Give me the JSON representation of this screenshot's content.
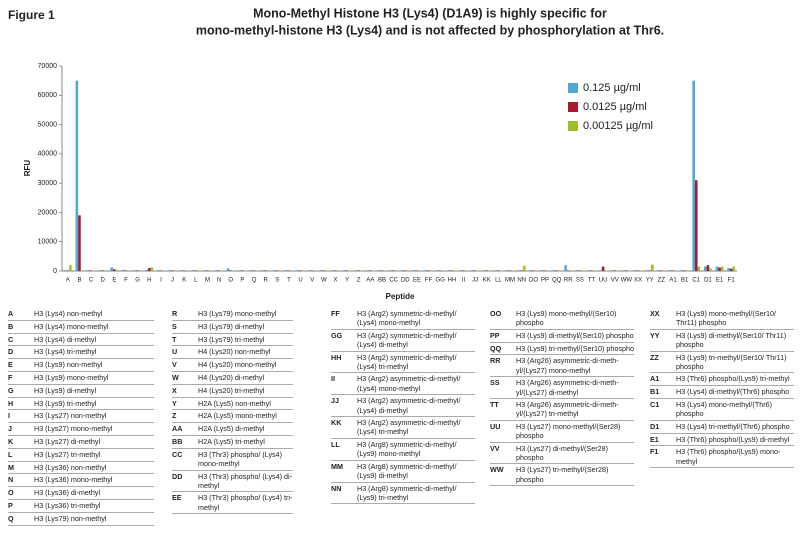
{
  "figure_label": "Figure 1",
  "chart_data": {
    "type": "bar",
    "title": [
      "Mono-Methyl Histone H3 (Lys4) (D1A9) is highly specific for",
      "mono-methyl-histone H3 (Lys4) and is not affected by phosphorylation at Thr6."
    ],
    "ylabel": "RFU",
    "xlabel": "Peptide",
    "categories": [
      "A",
      "B",
      "C",
      "D",
      "E",
      "F",
      "G",
      "H",
      "I",
      "J",
      "K",
      "L",
      "M",
      "N",
      "O",
      "P",
      "Q",
      "R",
      "S",
      "T",
      "U",
      "V",
      "W",
      "X",
      "Y",
      "Z",
      "AA",
      "BB",
      "CC",
      "DD",
      "EE",
      "FF",
      "GG",
      "HH",
      "II",
      "JJ",
      "KK",
      "LL",
      "MM",
      "NN",
      "OO",
      "PP",
      "QQ",
      "RR",
      "SS",
      "TT",
      "UU",
      "VV",
      "WW",
      "XX",
      "YY",
      "ZZ",
      "A1",
      "B1",
      "C1",
      "D1",
      "E1",
      "F1"
    ],
    "series": [
      {
        "name": "0.125 µg/ml",
        "color": "#4ea8d8",
        "values": [
          300,
          65000,
          300,
          300,
          1200,
          400,
          300,
          400,
          300,
          300,
          300,
          300,
          300,
          300,
          900,
          300,
          300,
          300,
          300,
          300,
          300,
          300,
          300,
          300,
          300,
          300,
          300,
          300,
          300,
          300,
          300,
          300,
          300,
          300,
          300,
          300,
          300,
          300,
          300,
          300,
          300,
          300,
          300,
          2000,
          300,
          300,
          300,
          300,
          300,
          300,
          300,
          300,
          300,
          300,
          65000,
          1500,
          1500,
          1000
        ]
      },
      {
        "name": "0.0125 µg/ml",
        "color": "#a6192e",
        "values": [
          200,
          19000,
          200,
          200,
          600,
          200,
          200,
          1000,
          200,
          200,
          200,
          200,
          200,
          200,
          200,
          200,
          200,
          200,
          200,
          200,
          200,
          200,
          200,
          200,
          200,
          200,
          200,
          200,
          200,
          200,
          200,
          200,
          200,
          200,
          200,
          200,
          200,
          200,
          200,
          200,
          200,
          200,
          200,
          200,
          200,
          200,
          1500,
          200,
          200,
          200,
          200,
          200,
          200,
          200,
          31000,
          2000,
          1200,
          800
        ]
      },
      {
        "name": "0.00125 µg/ml",
        "color": "#9cbf2b",
        "values": [
          2000,
          200,
          200,
          200,
          300,
          200,
          200,
          1200,
          200,
          200,
          200,
          200,
          200,
          200,
          200,
          200,
          200,
          200,
          200,
          200,
          200,
          200,
          200,
          200,
          200,
          200,
          200,
          200,
          200,
          200,
          200,
          200,
          200,
          200,
          200,
          200,
          200,
          200,
          200,
          1800,
          200,
          200,
          200,
          200,
          200,
          200,
          200,
          200,
          200,
          200,
          2200,
          200,
          200,
          200,
          1500,
          800,
          1500,
          1500
        ]
      }
    ],
    "ylim": [
      0,
      70000
    ],
    "yticks": [
      0,
      10000,
      20000,
      30000,
      40000,
      50000,
      60000,
      70000
    ],
    "legend": "top-right"
  },
  "key": [
    [
      {
        "code": "A",
        "description": "H3 (Lys4) non-methyl"
      },
      {
        "code": "B",
        "description": "H3 (Lys4) mono-methyl"
      },
      {
        "code": "C",
        "description": "H3 (Lys4) di-methyl"
      },
      {
        "code": "D",
        "description": "H3 (Lys4) tri-methyl"
      },
      {
        "code": "E",
        "description": "H3 (Lys9) non-methyl"
      },
      {
        "code": "F",
        "description": "H3 (Lys9) mono-methyl"
      },
      {
        "code": "G",
        "description": "H3 (Lys9) di-methyl"
      },
      {
        "code": "H",
        "description": "H3 (Lys9) tri-methyl"
      },
      {
        "code": "I",
        "description": "H3 (Lys27) non-methyl"
      },
      {
        "code": "J",
        "description": "H3 (Lys27) mono-methyl"
      },
      {
        "code": "K",
        "description": "H3 (Lys27) di-methyl"
      },
      {
        "code": "L",
        "description": "H3 (Lys27) tri-methyl"
      },
      {
        "code": "M",
        "description": "H3 (Lys36) non-methyl"
      },
      {
        "code": "N",
        "description": "H3 (Lys36) mono-methyl"
      },
      {
        "code": "O",
        "description": "H3 (Lys36) di-methyl"
      },
      {
        "code": "P",
        "description": "H3 (Lys36) tri-methyl"
      },
      {
        "code": "Q",
        "description": "H3 (Lys79) non-methyl"
      }
    ],
    [
      {
        "code": "R",
        "description": "H3 (Lys79) mono-methyl"
      },
      {
        "code": "S",
        "description": "H3 (Lys79) di-methyl"
      },
      {
        "code": "T",
        "description": "H3 (Lys79) tri-methyl"
      },
      {
        "code": "U",
        "description": "H4 (Lys20) non-methyl"
      },
      {
        "code": "V",
        "description": "H4 (Lys20) mono-methyl"
      },
      {
        "code": "W",
        "description": "H4 (Lys20) di-methyl"
      },
      {
        "code": "X",
        "description": "H4 (Lys20) tri-methyl"
      },
      {
        "code": "Y",
        "description": "H2A (Lys5) non-methyl"
      },
      {
        "code": "Z",
        "description": "H2A (Lys5) mono-methyl"
      },
      {
        "code": "AA",
        "description": "H2A (Lys5) di-methyl"
      },
      {
        "code": "BB",
        "description": "H2A (Lys5) tri-methyl"
      },
      {
        "code": "CC",
        "description": "H3 (Thr3) phospho/ (Lys4) mono-methyl"
      },
      {
        "code": "DD",
        "description": "H3 (Thr3) phospho/ (Lys4) di-methyl"
      },
      {
        "code": "EE",
        "description": "H3 (Thr3) phospho/ (Lys4) tri-methyl"
      }
    ],
    [
      {
        "code": "FF",
        "description": "H3 (Arg2) symmetric-di-methyl/ (Lys4) mono-methyl"
      },
      {
        "code": "GG",
        "description": "H3 (Arg2) symmetric-di-methyl/ (Lys4) di-methyl"
      },
      {
        "code": "HH",
        "description": "H3 (Arg2) symmetric-di-methyl/ (Lys4) tri-methyl"
      },
      {
        "code": "II",
        "description": "H3 (Arg2) asymmetric-di-methyl/ (Lys4) mono-methyl"
      },
      {
        "code": "JJ",
        "description": "H3 (Arg2) asymmetric-di-methyl/ (Lys4) di-methyl"
      },
      {
        "code": "KK",
        "description": "H3 (Arg2) asymmetric-di-methyl/ (Lys4) tri-methyl"
      },
      {
        "code": "LL",
        "description": "H3 (Arg8) symmetric-di-methyl/ (Lys9) mono-methyl"
      },
      {
        "code": "MM",
        "description": "H3 (Arg8) symmetric-di-methyl/ (Lys9) di-methyl"
      },
      {
        "code": "NN",
        "description": "H3 (Arg8) symmetric-di-methyl/ (Lys9) tri-methyl"
      }
    ],
    [
      {
        "code": "OO",
        "description": "H3 (Lys9) mono-methyl/(Ser10) phospho"
      },
      {
        "code": "PP",
        "description": "H3 (Lys9) di-methyl/(Ser10) phospho"
      },
      {
        "code": "QQ",
        "description": "H3 (Lys9) tri-methyl/(Ser10) phospho"
      },
      {
        "code": "RR",
        "description": "H3 (Arg26) asymmetric-di-meth-yl/(Lys27) mono-methyl"
      },
      {
        "code": "SS",
        "description": "H3 (Arg26) asymmetric-di-meth-yl/(Lys27) di-methyl"
      },
      {
        "code": "TT",
        "description": "H3 (Arg26) asymmetric-di-meth-yl/(Lys27) tri-methyl"
      },
      {
        "code": "UU",
        "description": "H3 (Lys27) mono-methyl/(Ser28) phospho"
      },
      {
        "code": "VV",
        "description": "H3 (Lys27) di-methyl/(Ser28) phospho"
      },
      {
        "code": "WW",
        "description": "H3 (Lys27) tri-methyl/(Ser28) phospho"
      }
    ],
    [
      {
        "code": "XX",
        "description": "H3 (Lys9) mono-methyl/(Ser10/ Thr11) phospho"
      },
      {
        "code": "YY",
        "description": "H3 (Lys9) di-methyl/(Ser10/ Thr11) phospho"
      },
      {
        "code": "ZZ",
        "description": "H3 (Lys9) tri-methyl/(Ser10/ Thr11) phospho"
      },
      {
        "code": "A1",
        "description": "H3 (Thr6) phospho/(Lys9) tri-methyl"
      },
      {
        "code": "B1",
        "description": "H3 (Lys4) di-methyl/(Thr6) phospho"
      },
      {
        "code": "C1",
        "description": "H3 (Lys4) mono-methyl/(Thr6) phospho"
      },
      {
        "code": "D1",
        "description": "H3 (Lys4) tri-methyl/(Thr6) phospho"
      },
      {
        "code": "E1",
        "description": "H3 (Thr6) phospho/(Lys9) di-methyl"
      },
      {
        "code": "F1",
        "description": "H3 (Thr6) phospho/(Lys9) mono-methyl"
      }
    ]
  ]
}
